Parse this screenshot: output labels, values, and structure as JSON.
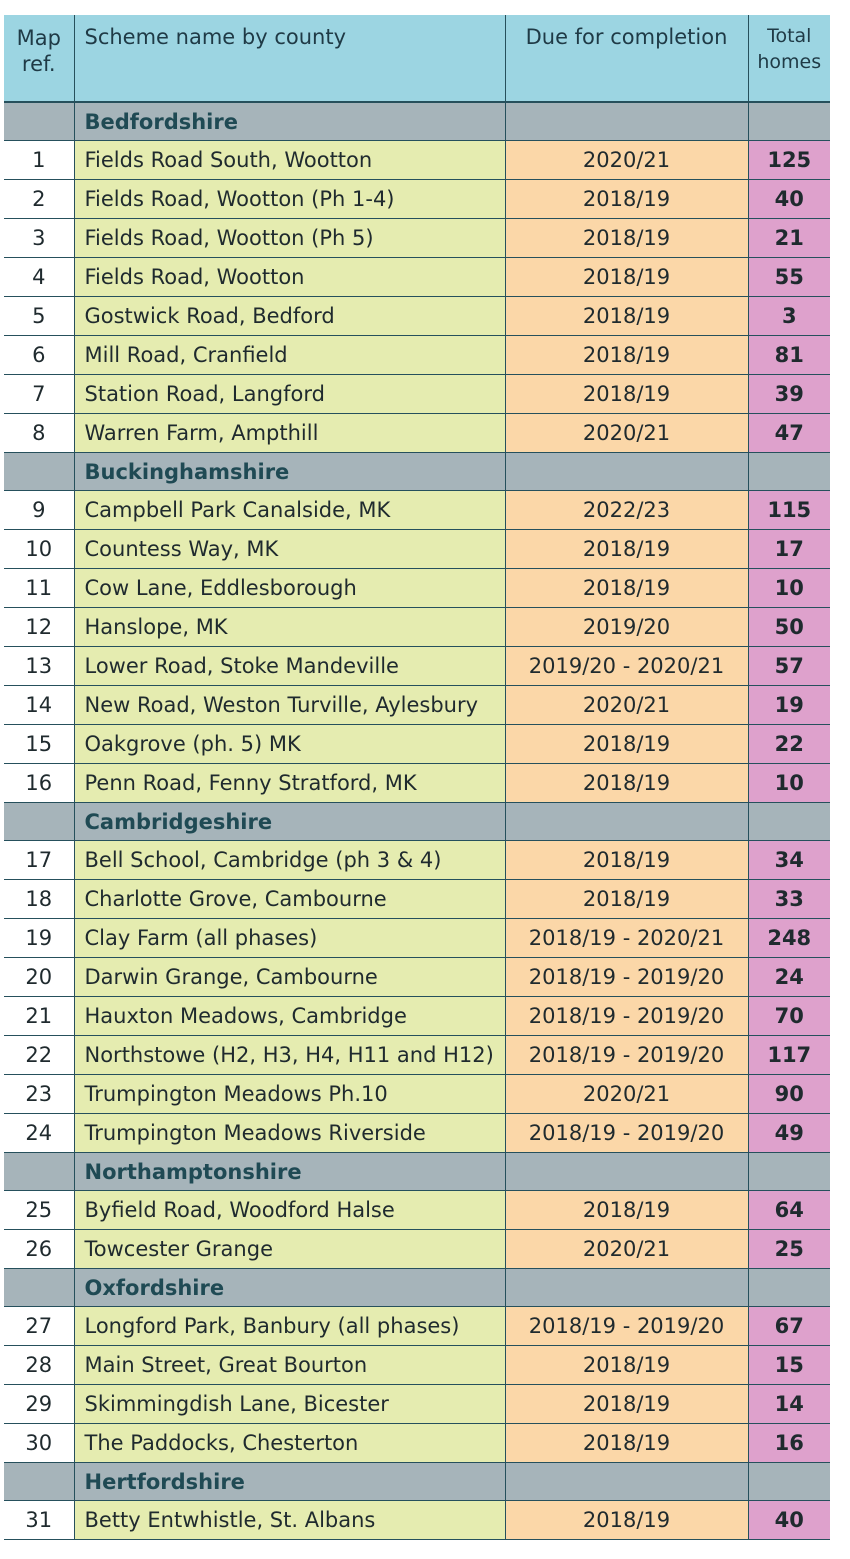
{
  "header": {
    "map_ref": "Map\nref.",
    "scheme": "Scheme name by county",
    "due": "Due for completion",
    "total": "Total\nhomes"
  },
  "groups": [
    {
      "county": "Bedfordshire",
      "rows": [
        {
          "ref": "1",
          "name": "Fields Road South, Wootton",
          "due": "2020/21",
          "total": "125"
        },
        {
          "ref": "2",
          "name": "Fields Road, Wootton (Ph 1-4)",
          "due": "2018/19",
          "total": "40"
        },
        {
          "ref": "3",
          "name": "Fields Road, Wootton (Ph 5)",
          "due": "2018/19",
          "total": "21"
        },
        {
          "ref": "4",
          "name": "Fields Road, Wootton",
          "due": "2018/19",
          "total": "55"
        },
        {
          "ref": "5",
          "name": "Gostwick Road, Bedford",
          "due": "2018/19",
          "total": "3"
        },
        {
          "ref": "6",
          "name": "Mill Road, Cranfield",
          "due": "2018/19",
          "total": "81"
        },
        {
          "ref": "7",
          "name": "Station Road, Langford",
          "due": "2018/19",
          "total": "39"
        },
        {
          "ref": "8",
          "name": "Warren Farm, Ampthill",
          "due": "2020/21",
          "total": "47"
        }
      ]
    },
    {
      "county": "Buckinghamshire",
      "rows": [
        {
          "ref": "9",
          "name": "Campbell Park Canalside, MK",
          "due": "2022/23",
          "total": "115"
        },
        {
          "ref": "10",
          "name": "Countess Way, MK",
          "due": "2018/19",
          "total": "17"
        },
        {
          "ref": "11",
          "name": "Cow Lane, Eddlesborough",
          "due": "2018/19",
          "total": "10"
        },
        {
          "ref": "12",
          "name": "Hanslope, MK",
          "due": "2019/20",
          "total": "50"
        },
        {
          "ref": "13",
          "name": "Lower Road, Stoke Mandeville",
          "due": "2019/20 - 2020/21",
          "total": "57"
        },
        {
          "ref": "14",
          "name": "New Road, Weston Turville, Aylesbury",
          "due": "2020/21",
          "total": "19"
        },
        {
          "ref": "15",
          "name": "Oakgrove (ph. 5) MK",
          "due": "2018/19",
          "total": "22"
        },
        {
          "ref": "16",
          "name": "Penn Road, Fenny Stratford, MK",
          "due": "2018/19",
          "total": "10"
        }
      ]
    },
    {
      "county": "Cambridgeshire",
      "rows": [
        {
          "ref": "17",
          "name": "Bell School, Cambridge (ph 3 & 4)",
          "due": "2018/19",
          "total": "34"
        },
        {
          "ref": "18",
          "name": "Charlotte Grove, Cambourne",
          "due": "2018/19",
          "total": "33"
        },
        {
          "ref": "19",
          "name": "Clay Farm (all phases)",
          "due": "2018/19 - 2020/21",
          "total": "248"
        },
        {
          "ref": "20",
          "name": "Darwin Grange, Cambourne",
          "due": "2018/19 - 2019/20",
          "total": "24"
        },
        {
          "ref": "21",
          "name": "Hauxton Meadows, Cambridge",
          "due": "2018/19 - 2019/20",
          "total": "70"
        },
        {
          "ref": "22",
          "name": "Northstowe (H2, H3, H4, H11 and H12)",
          "due": "2018/19 - 2019/20",
          "total": "117"
        },
        {
          "ref": "23",
          "name": "Trumpington Meadows Ph.10",
          "due": "2020/21",
          "total": "90"
        },
        {
          "ref": "24",
          "name": "Trumpington Meadows Riverside",
          "due": "2018/19 - 2019/20",
          "total": "49"
        }
      ]
    },
    {
      "county": "Northamptonshire",
      "rows": [
        {
          "ref": "25",
          "name": "Byfield Road, Woodford Halse",
          "due": "2018/19",
          "total": "64"
        },
        {
          "ref": "26",
          "name": "Towcester Grange",
          "due": "2020/21",
          "total": "25"
        }
      ]
    },
    {
      "county": "Oxfordshire",
      "rows": [
        {
          "ref": "27",
          "name": "Longford Park, Banbury (all phases)",
          "due": "2018/19 - 2019/20",
          "total": "67"
        },
        {
          "ref": "28",
          "name": "Main Street, Great Bourton",
          "due": "2018/19",
          "total": "15"
        },
        {
          "ref": "29",
          "name": "Skimmingdish Lane, Bicester",
          "due": "2018/19",
          "total": "14"
        },
        {
          "ref": "30",
          "name": "The Paddocks, Chesterton",
          "due": "2018/19",
          "total": "16"
        }
      ]
    },
    {
      "county": "Hertfordshire",
      "rows": [
        {
          "ref": "31",
          "name": "Betty Entwhistle, St. Albans",
          "due": "2018/19",
          "total": "40"
        }
      ]
    }
  ],
  "colors": {
    "header": "#9cd5e2",
    "group": "#a6b4ba",
    "name": "#e5ecb0",
    "due": "#fbd7a8",
    "total": "#dea1cc"
  }
}
